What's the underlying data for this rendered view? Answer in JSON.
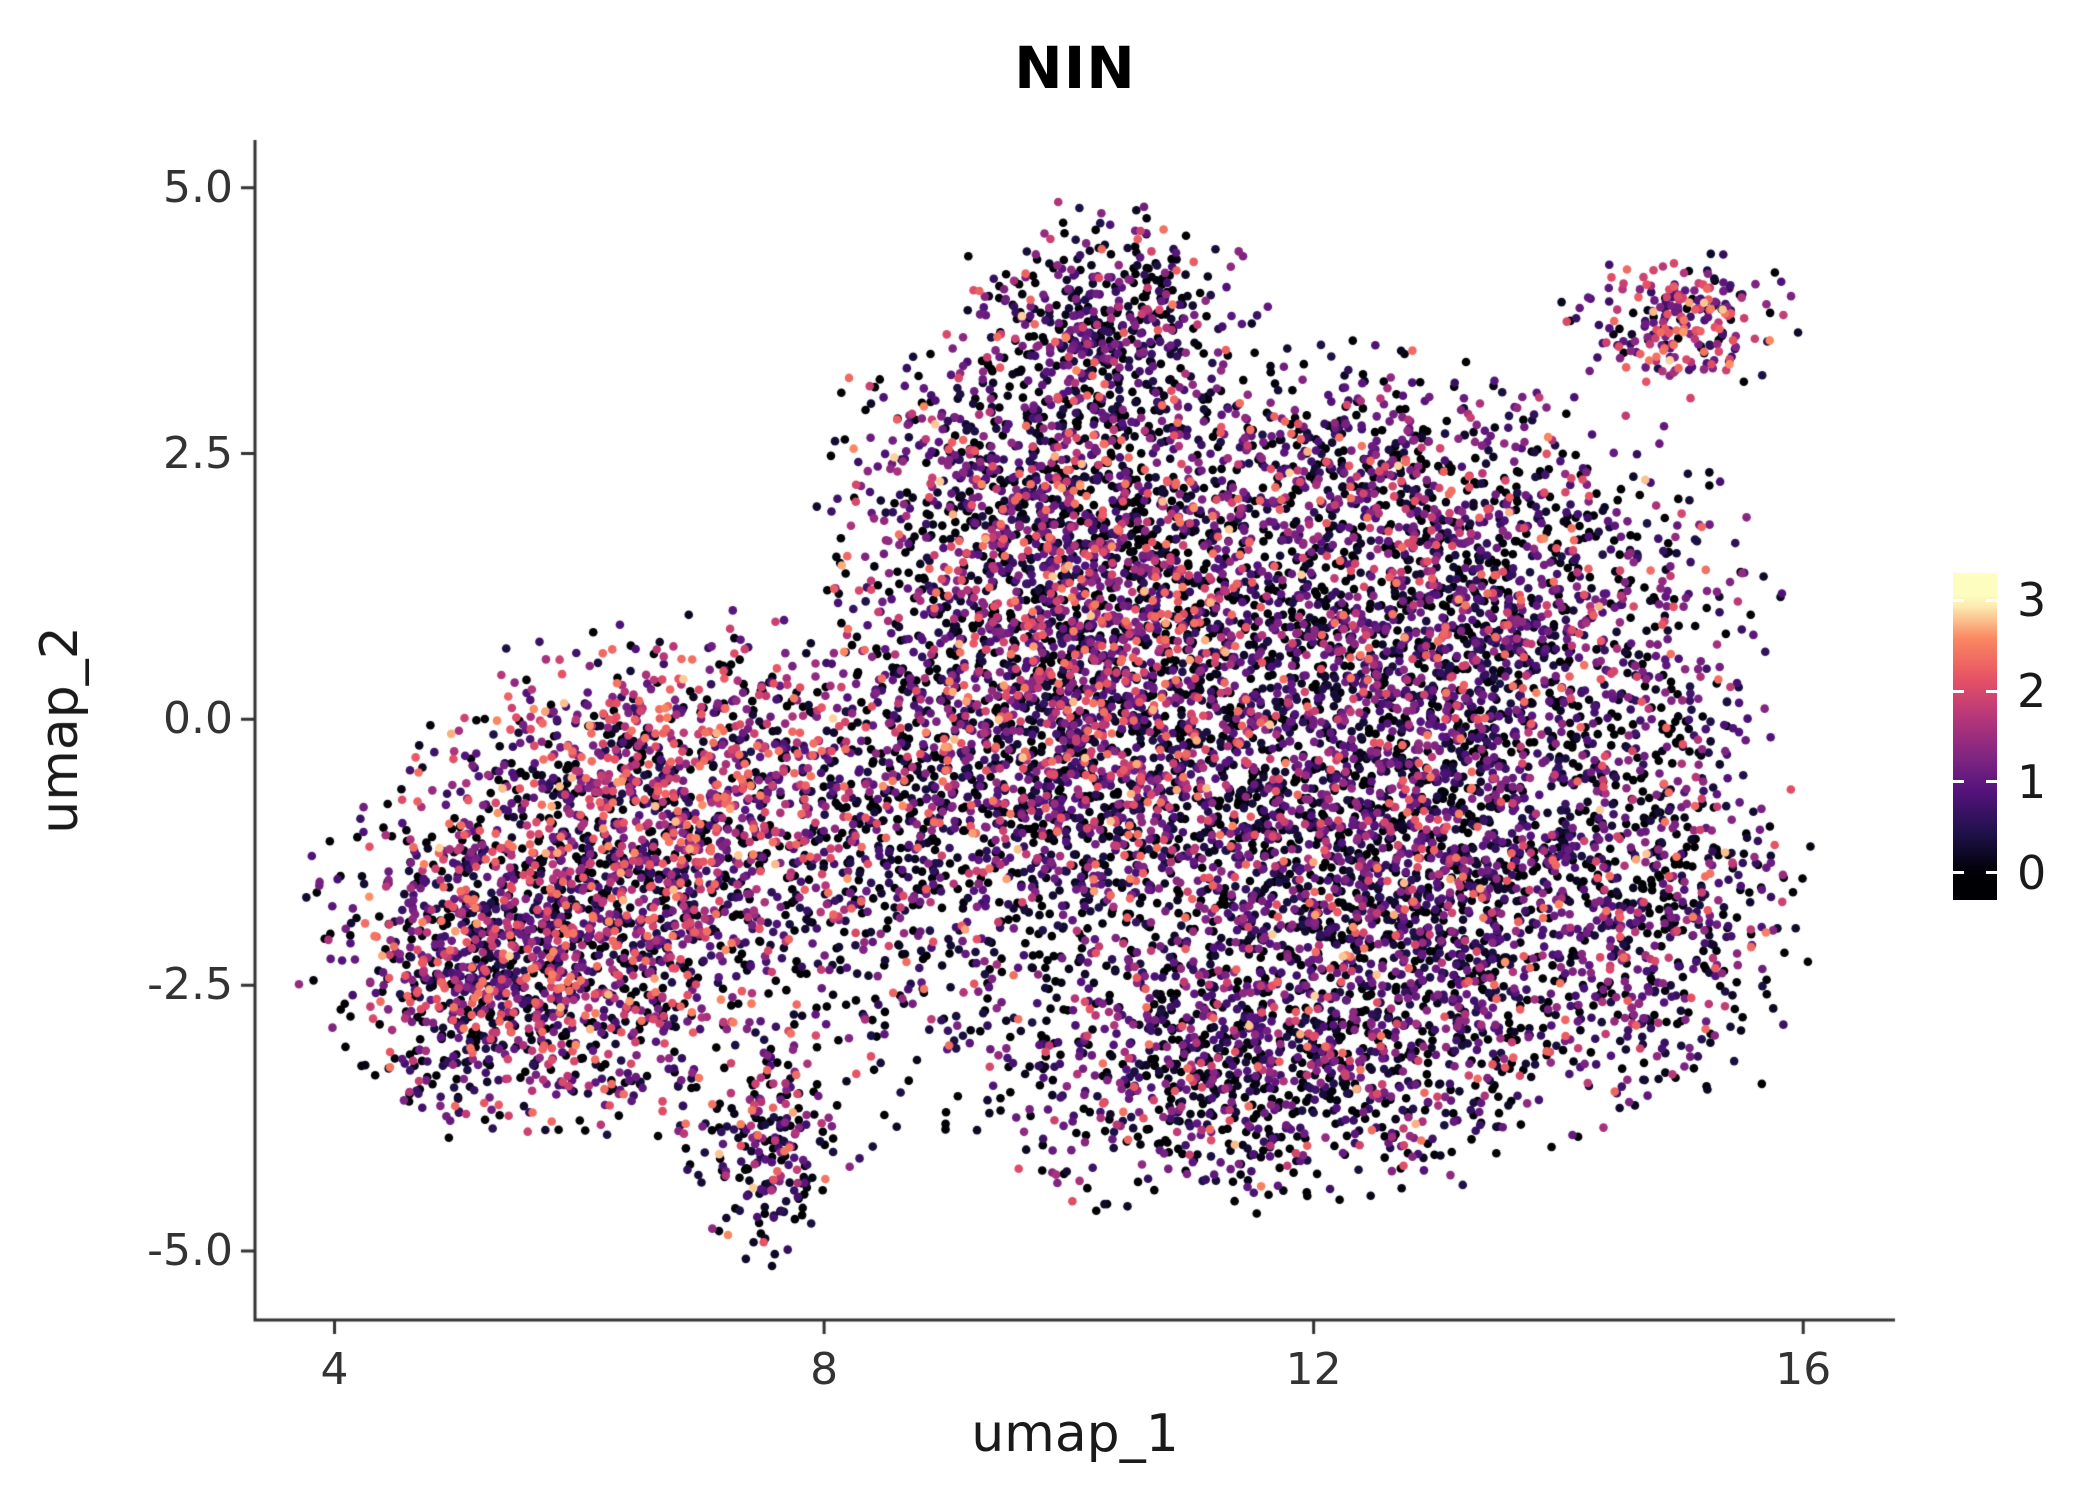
{
  "figure": {
    "background": "#ffffff"
  },
  "colors": {
    "axis": "#333333",
    "tick": "#333333",
    "text": "#1a1a1a",
    "title": "#000000"
  },
  "chart_data": {
    "type": "scatter",
    "title": "NIN",
    "xlabel": "umap_1",
    "ylabel": "umap_2",
    "xlim": [
      3.35,
      16.75
    ],
    "ylim": [
      -5.65,
      5.45
    ],
    "xticks": [
      4,
      8,
      12,
      16
    ],
    "xtick_labels": [
      "4",
      "8",
      "12",
      "16"
    ],
    "yticks": [
      5.0,
      2.5,
      0.0,
      -2.5,
      -5.0
    ],
    "ytick_labels": [
      "5.0",
      "2.5",
      "0.0",
      "-2.5",
      "-5.0"
    ],
    "grid": false,
    "point_radius": 4.3,
    "seed": 1337,
    "colormap": {
      "name": "magma",
      "stops": [
        [
          0.0,
          "#000004"
        ],
        [
          0.14,
          "#1D1147"
        ],
        [
          0.29,
          "#51127C"
        ],
        [
          0.43,
          "#822681"
        ],
        [
          0.57,
          "#B63679"
        ],
        [
          0.71,
          "#E65164"
        ],
        [
          0.86,
          "#FB8861"
        ],
        [
          1.0,
          "#FCFDBF"
        ]
      ]
    },
    "colorbar": {
      "position": "right",
      "range": [
        0,
        3
      ],
      "domain": [
        -0.3,
        3.3
      ],
      "ticks": [
        3,
        2,
        1,
        0
      ],
      "tick_labels": [
        "3",
        "2",
        "1",
        "0"
      ]
    },
    "clusters": [
      {
        "name": "left-lobe-core",
        "cx": 6.0,
        "cy": -2.0,
        "sx": 0.95,
        "sy": 0.8,
        "n": 1500,
        "weights": [
          0.38,
          0.34,
          0.23,
          0.05
        ]
      },
      {
        "name": "left-lobe-upper",
        "cx": 6.9,
        "cy": -0.45,
        "sx": 0.9,
        "sy": 0.6,
        "n": 850,
        "weights": [
          0.29,
          0.33,
          0.32,
          0.06
        ]
      },
      {
        "name": "left-west-edge",
        "cx": 5.15,
        "cy": -2.5,
        "sx": 0.45,
        "sy": 0.6,
        "n": 380,
        "weights": [
          0.46,
          0.34,
          0.17,
          0.03
        ]
      },
      {
        "name": "bottom-left-tail",
        "cx": 7.55,
        "cy": -4.0,
        "sx": 0.3,
        "sy": 0.5,
        "n": 220,
        "weights": [
          0.55,
          0.27,
          0.15,
          0.03
        ]
      },
      {
        "name": "bridge",
        "cx": 8.6,
        "cy": -1.3,
        "sx": 0.65,
        "sy": 1.1,
        "n": 500,
        "weights": [
          0.6,
          0.28,
          0.11,
          0.01
        ]
      },
      {
        "name": "top-protrusion",
        "cx": 10.3,
        "cy": 3.7,
        "sx": 0.55,
        "sy": 0.5,
        "n": 480,
        "weights": [
          0.5,
          0.38,
          0.11,
          0.01
        ]
      },
      {
        "name": "center-mass",
        "cx": 10.2,
        "cy": 1.0,
        "sx": 0.95,
        "sy": 1.0,
        "n": 1900,
        "weights": [
          0.43,
          0.34,
          0.19,
          0.04
        ]
      },
      {
        "name": "center-low",
        "cx": 10.0,
        "cy": -0.7,
        "sx": 0.85,
        "sy": 0.9,
        "n": 850,
        "weights": [
          0.5,
          0.33,
          0.15,
          0.02
        ]
      },
      {
        "name": "upper-mid",
        "cx": 9.6,
        "cy": 2.4,
        "sx": 0.7,
        "sy": 0.55,
        "n": 430,
        "weights": [
          0.52,
          0.34,
          0.13,
          0.01
        ]
      },
      {
        "name": "right-mass",
        "cx": 12.7,
        "cy": -1.3,
        "sx": 1.3,
        "sy": 1.2,
        "n": 3000,
        "weights": [
          0.52,
          0.36,
          0.11,
          0.01
        ]
      },
      {
        "name": "right-upper",
        "cx": 13.2,
        "cy": 1.1,
        "sx": 1.1,
        "sy": 0.85,
        "n": 1300,
        "weights": [
          0.46,
          0.4,
          0.13,
          0.01
        ]
      },
      {
        "name": "right-top-edge",
        "cx": 12.2,
        "cy": 2.4,
        "sx": 0.85,
        "sy": 0.5,
        "n": 420,
        "weights": [
          0.52,
          0.36,
          0.11,
          0.01
        ]
      },
      {
        "name": "bottom-center",
        "cx": 11.4,
        "cy": -3.3,
        "sx": 1.05,
        "sy": 0.6,
        "n": 850,
        "weights": [
          0.55,
          0.33,
          0.11,
          0.01
        ]
      },
      {
        "name": "far-right-edge",
        "cx": 14.9,
        "cy": -1.6,
        "sx": 0.5,
        "sy": 1.0,
        "n": 330,
        "weights": [
          0.5,
          0.36,
          0.13,
          0.01
        ]
      },
      {
        "name": "top-right-island",
        "cx": 15.0,
        "cy": 3.75,
        "sx": 0.42,
        "sy": 0.3,
        "n": 230,
        "weights": [
          0.2,
          0.46,
          0.29,
          0.05
        ]
      }
    ]
  }
}
